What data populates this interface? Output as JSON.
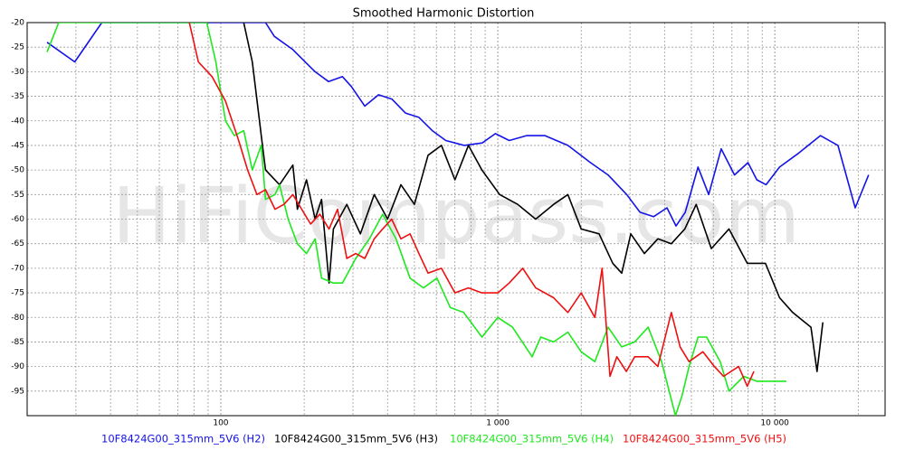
{
  "chart_data": {
    "type": "line",
    "title": "Smoothed Harmonic Distortion",
    "watermark": "HiFiCompass.com",
    "xscale": "log",
    "grid": true,
    "xlim": [
      20,
      25000
    ],
    "ylim": [
      -100,
      -20
    ],
    "xticks": [
      100,
      {
        "value": 1000,
        "label": "1 000"
      },
      {
        "value": 10000,
        "label": "10 000"
      }
    ],
    "yticks": [
      -20,
      -25,
      -30,
      -35,
      -40,
      -45,
      -50,
      -55,
      -60,
      -65,
      -70,
      -75,
      -80,
      -85,
      -90,
      -95
    ],
    "series": [
      {
        "name": "10F8424G00_315mm_5V6 (H2)",
        "color": "#1414e6",
        "x": [
          23.6,
          29.7,
          37.2,
          145,
          156,
          182,
          219,
          245,
          275,
          296,
          331,
          371,
          415,
          464,
          519,
          580,
          649,
          756,
          878,
          980,
          1100,
          1270,
          1480,
          1790,
          2160,
          2500,
          2920,
          3260,
          3650,
          4080,
          4400,
          4750,
          5280,
          5770,
          6400,
          7150,
          8000,
          8610,
          9300,
          10400,
          12100,
          14600,
          16900,
          19500,
          21800
        ],
        "values": [
          -24,
          -28,
          -20,
          -20,
          -22.8,
          -25.5,
          -30,
          -32,
          -31,
          -33,
          -37,
          -34.7,
          -35.6,
          -38.4,
          -39.3,
          -42,
          -44,
          -45,
          -44.5,
          -42.6,
          -44,
          -43,
          -43,
          -45,
          -48.5,
          -51,
          -55,
          -58.6,
          -59.5,
          -57.7,
          -61.4,
          -58.6,
          -49.4,
          -55,
          -45.7,
          -51,
          -48.5,
          -52,
          -53,
          -49.4,
          -46.7,
          -43,
          -45,
          -57.7,
          -51
        ]
      },
      {
        "name": "10F8424G00_315mm_5V6 (H3)",
        "color": "#000000",
        "x": [
          121,
          130,
          140,
          145,
          163,
          182,
          189,
          204,
          219,
          231,
          246,
          255,
          285,
          319,
          358,
          400,
          447,
          500,
          560,
          626,
          700,
          783,
          876,
          1015,
          1180,
          1370,
          1590,
          1790,
          2000,
          2320,
          2600,
          2800,
          3020,
          3380,
          3780,
          4230,
          4730,
          5200,
          5900,
          6830,
          7950,
          9250,
          10400,
          11600,
          13500,
          14200,
          14900
        ],
        "values": [
          -20,
          -28,
          -43,
          -50,
          -53,
          -49,
          -58,
          -52,
          -60,
          -56,
          -73,
          -62,
          -57,
          -63,
          -55,
          -60,
          -53,
          -57,
          -47,
          -45,
          -52,
          -45,
          -50,
          -55,
          -57,
          -60,
          -57,
          -55,
          -62,
          -63,
          -69,
          -71,
          -63,
          -67,
          -64,
          -65,
          -62,
          -57,
          -66,
          -62,
          -69,
          -69,
          -76,
          -79,
          -82,
          -91,
          -81
        ]
      },
      {
        "name": "10F8424G00_315mm_5V6 (H4)",
        "color": "#1ee81e",
        "x": [
          23.6,
          26,
          89,
          96,
          104,
          112,
          121,
          130,
          140,
          145,
          157,
          163,
          175,
          189,
          204,
          219,
          231,
          255,
          275,
          307,
          344,
          384,
          429,
          482,
          539,
          603,
          674,
          753,
          876,
          1000,
          1130,
          1330,
          1430,
          1590,
          1790,
          2000,
          2240,
          2500,
          2800,
          3120,
          3490,
          3900,
          4380,
          4620,
          4900,
          5280,
          5670,
          6350,
          6830,
          7720,
          8600,
          9610,
          11000
        ],
        "values": [
          -26,
          -20,
          -20,
          -28,
          -40,
          -43,
          -42,
          -50,
          -45,
          -56,
          -55,
          -53,
          -60,
          -65,
          -67,
          -64,
          -72,
          -73,
          -73,
          -68,
          -64,
          -59,
          -64,
          -72,
          -74,
          -72,
          -78,
          -79,
          -84,
          -80,
          -82,
          -88,
          -84,
          -85,
          -83,
          -87,
          -89,
          -82,
          -86,
          -85,
          -82,
          -89,
          -100,
          -96,
          -90,
          -84,
          -84,
          -89,
          -95,
          -92,
          -93,
          -93,
          -93
        ]
      },
      {
        "name": "10F8424G00_315mm_5V6 (H5)",
        "color": "#ee1010",
        "x": [
          77,
          83,
          93,
          104,
          116,
          125,
          135,
          145,
          157,
          169,
          182,
          196,
          211,
          228,
          246,
          264,
          285,
          307,
          331,
          358,
          384,
          414,
          447,
          482,
          519,
          560,
          626,
          700,
          783,
          876,
          1000,
          1100,
          1230,
          1370,
          1590,
          1790,
          2000,
          2240,
          2380,
          2540,
          2690,
          2910,
          3120,
          3490,
          3780,
          4230,
          4550,
          4900,
          5500,
          6050,
          6530,
          7400,
          7950,
          8400
        ],
        "values": [
          -20,
          -28,
          -31,
          -36,
          -44,
          -50,
          -55,
          -54,
          -58,
          -57,
          -55,
          -58,
          -61,
          -59,
          -62,
          -58,
          -68,
          -67,
          -68,
          -64,
          -62,
          -60,
          -64,
          -63,
          -67,
          -71,
          -70,
          -75,
          -74,
          -75,
          -75,
          -73,
          -70,
          -74,
          -76,
          -79,
          -75,
          -80,
          -70,
          -92,
          -88,
          -91,
          -88,
          -88,
          -90,
          -79,
          -86,
          -89,
          -87,
          -90,
          -92,
          -90,
          -94,
          -91
        ]
      }
    ]
  }
}
